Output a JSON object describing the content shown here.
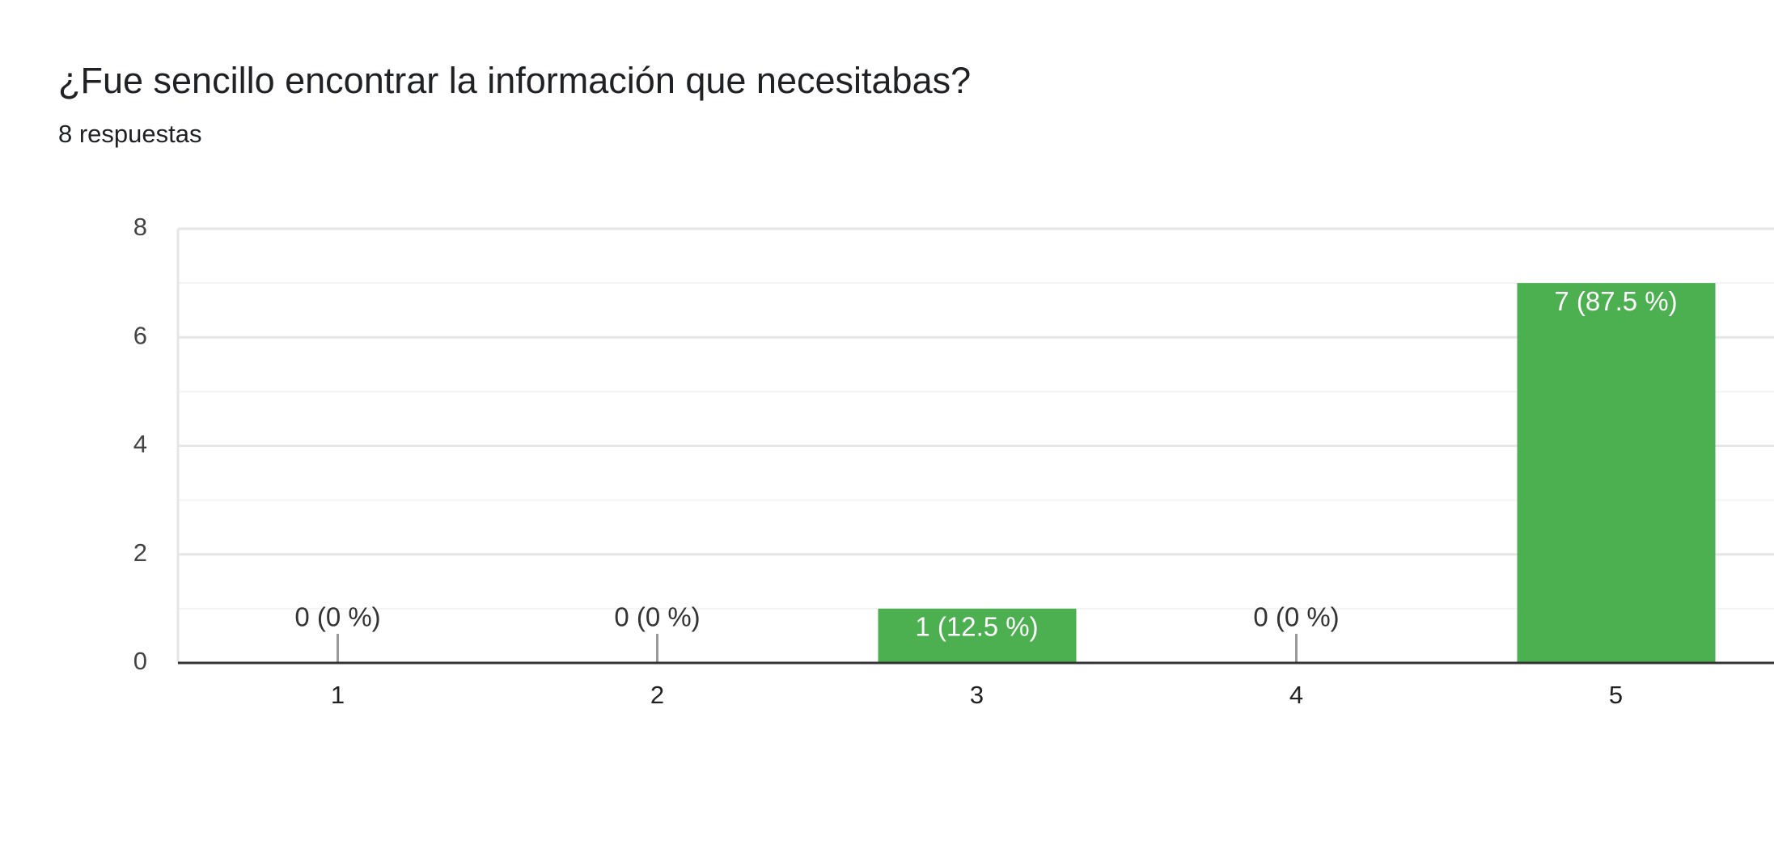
{
  "chart_data": {
    "type": "bar",
    "title": "¿Fue sencillo encontrar la información que necesitabas?",
    "subtitle": "8 respuestas",
    "categories": [
      "1",
      "2",
      "3",
      "4",
      "5"
    ],
    "values": [
      0,
      0,
      1,
      0,
      7
    ],
    "value_labels": [
      "0 (0 %)",
      "0 (0 %)",
      "1 (12.5 %)",
      "0 (0 %)",
      "7 (87.5 %)"
    ],
    "color": "#4caf50",
    "ylim": [
      0,
      8
    ],
    "yticks": [
      0,
      2,
      4,
      6,
      8
    ],
    "minor_yticks": [
      1,
      3,
      5,
      7
    ],
    "grid": true
  }
}
